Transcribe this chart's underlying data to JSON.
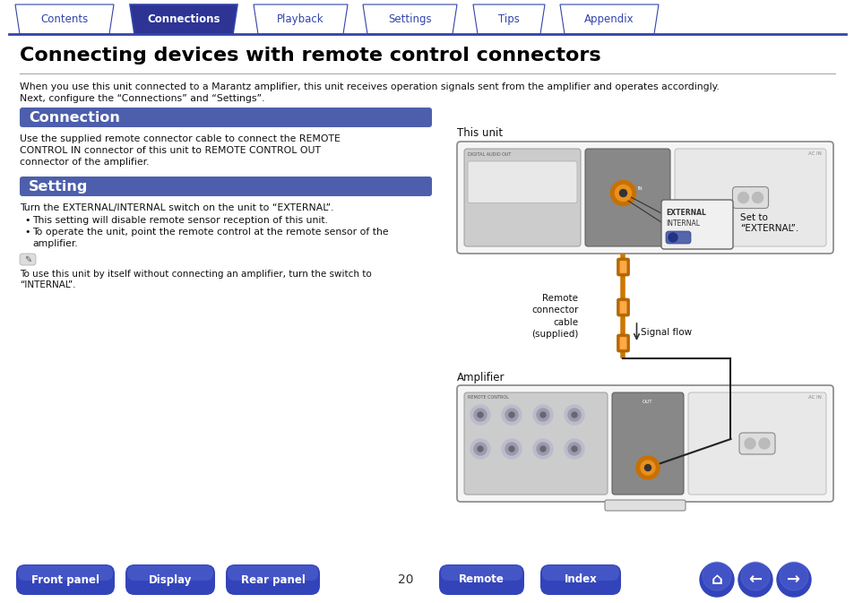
{
  "title": "Connecting devices with remote control connectors",
  "tab_labels": [
    "Contents",
    "Connections",
    "Playback",
    "Settings",
    "Tips",
    "Appendix"
  ],
  "active_tab": 1,
  "tab_bg_active": "#2d3494",
  "tab_bg_inactive": "#ffffff",
  "tab_text_active": "#ffffff",
  "tab_text_inactive": "#3344aa",
  "tab_border_color": "#3344aa",
  "page_bg": "#ffffff",
  "section_bg": "#4d5fac",
  "section_text": "#ffffff",
  "body_text_color": "#111111",
  "intro_text_1": "When you use this unit connected to a Marantz amplifier, this unit receives operation signals sent from the amplifier and operates accordingly.",
  "intro_text_2": "Next, configure the “Connections” and “Settings”.",
  "connection_title": "Connection",
  "connection_lines": [
    "Use the supplied remote connector cable to connect the REMOTE",
    "CONTROL IN connector of this unit to REMOTE CONTROL OUT",
    "connector of the amplifier."
  ],
  "setting_title": "Setting",
  "setting_text1": "Turn the EXTERNAL/INTERNAL switch on the unit to “EXTERNAL”.",
  "bullet1": "This setting will disable remote sensor reception of this unit.",
  "bullet2_1": "To operate the unit, point the remote control at the remote sensor of the",
  "bullet2_2": "amplifier.",
  "note_line1": "To use this unit by itself without connecting an amplifier, turn the switch to",
  "note_line2": "“INTERNAL”.",
  "diagram_label_top": "This unit",
  "diagram_label_bottom": "Amplifier",
  "diagram_cable_label": "Remote\nconnector\ncable\n(supplied)",
  "diagram_signal_label": "Signal flow",
  "diagram_set_label": "Set to\n“EXTERNAL”.",
  "bottom_buttons": [
    "Front panel",
    "Display",
    "Rear panel",
    "Remote",
    "Index"
  ],
  "page_number": "20",
  "btn_bg": "#3344bb",
  "btn_text": "#ffffff"
}
